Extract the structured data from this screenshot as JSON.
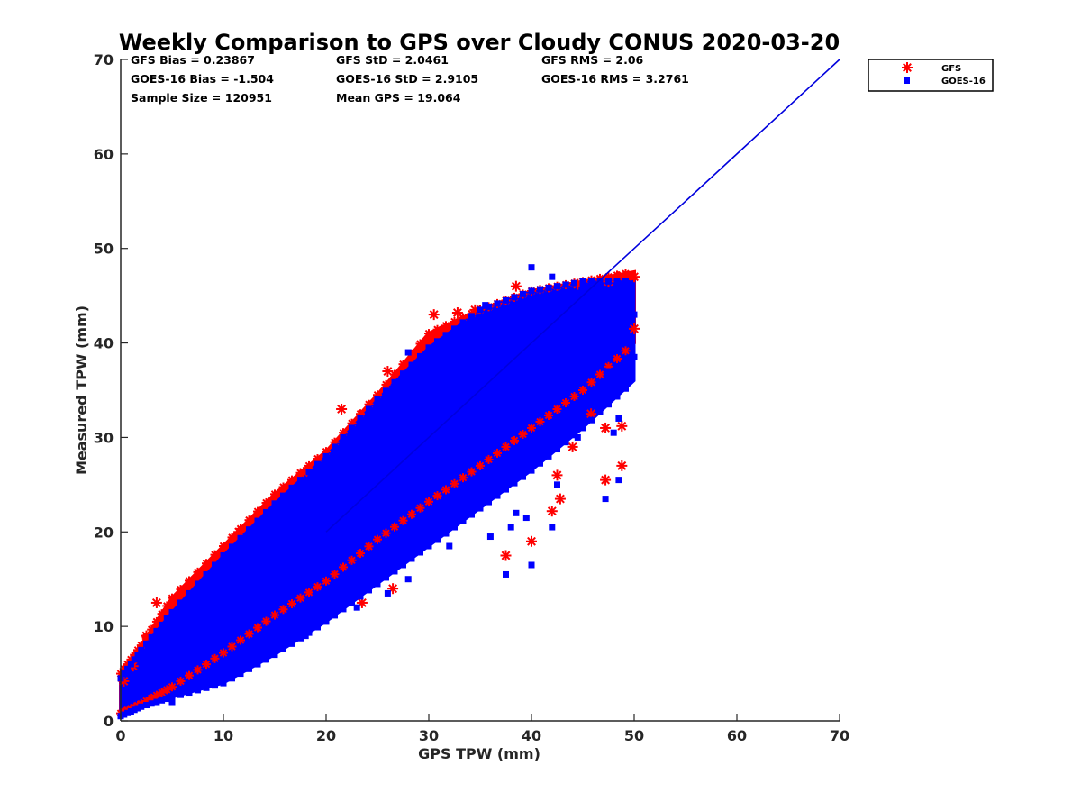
{
  "chart_data": {
    "type": "scatter",
    "title": "Weekly Comparison to GPS over Cloudy CONUS 2020-03-20",
    "xlabel": "GPS TPW (mm)",
    "ylabel": "Measured TPW (mm)",
    "xlim": [
      0,
      70
    ],
    "ylim": [
      0,
      70
    ],
    "xticks": [
      "0",
      "10",
      "20",
      "30",
      "40",
      "50",
      "60",
      "70"
    ],
    "yticks": [
      "0",
      "10",
      "20",
      "30",
      "40",
      "50",
      "60",
      "70"
    ],
    "grid": false,
    "legend_position": "top-right outside",
    "stats": [
      [
        "GFS Bias = 0.23867",
        "GFS StD = 2.0461",
        "GFS RMS = 2.06"
      ],
      [
        "GOES-16 Bias = -1.504",
        "GOES-16 StD = 2.9105",
        "GOES-16 RMS = 3.2761"
      ],
      [
        "Sample Size = 120951",
        "Mean GPS = 19.064",
        ""
      ]
    ],
    "series": [
      {
        "name": "GFS",
        "marker": "asterisk",
        "color": "#ff0000",
        "envelope_x": [
          0,
          2,
          5,
          10,
          15,
          20,
          25,
          30,
          35,
          40,
          45,
          50
        ],
        "envelope_low": [
          0.8,
          1.8,
          3.6,
          7.2,
          11.2,
          14.8,
          19.2,
          23.2,
          27.0,
          31.0,
          35.0,
          40.0
        ],
        "envelope_high": [
          5.0,
          8.0,
          13.0,
          18.5,
          24.0,
          28.5,
          34.5,
          41.0,
          43.5,
          45.5,
          46.5,
          47.5
        ],
        "outliers": [
          [
            0.3,
            4.2
          ],
          [
            1.2,
            5.8
          ],
          [
            3.5,
            12.5
          ],
          [
            2.5,
            9.0
          ],
          [
            11.5,
            20.0
          ],
          [
            17.8,
            26.3
          ],
          [
            21.5,
            33.0
          ],
          [
            26.0,
            37.0
          ],
          [
            30.5,
            43.0
          ],
          [
            32.8,
            43.2
          ],
          [
            34.5,
            43.5
          ],
          [
            38.5,
            46.0
          ],
          [
            44.5,
            46.2
          ],
          [
            47.5,
            46.5
          ],
          [
            48.5,
            47.0
          ],
          [
            50.0,
            47.0
          ],
          [
            50.0,
            41.5
          ],
          [
            48.8,
            31.2
          ],
          [
            47.2,
            31.0
          ],
          [
            47.2,
            25.5
          ],
          [
            48.8,
            27.0
          ],
          [
            45.8,
            32.5
          ],
          [
            44.0,
            29.0
          ],
          [
            42.5,
            26.0
          ],
          [
            42.8,
            23.5
          ],
          [
            42.0,
            22.2
          ],
          [
            40.0,
            19.0
          ],
          [
            37.5,
            17.5
          ],
          [
            26.5,
            14.0
          ],
          [
            23.5,
            12.5
          ]
        ]
      },
      {
        "name": "GOES-16",
        "marker": "square",
        "color": "#0000ff",
        "envelope_x": [
          0,
          2,
          5,
          10,
          15,
          20,
          25,
          30,
          35,
          40,
          45,
          50
        ],
        "envelope_low": [
          0.5,
          1.5,
          2.5,
          4.0,
          7.0,
          10.5,
          14.5,
          18.5,
          22.5,
          26.5,
          31.0,
          36.0
        ],
        "envelope_high": [
          4.5,
          7.5,
          11.5,
          17.5,
          23.0,
          28.0,
          34.0,
          39.5,
          43.5,
          45.5,
          46.5,
          46.5
        ],
        "outliers": [
          [
            28.0,
            39.0
          ],
          [
            35.5,
            44.0
          ],
          [
            40.0,
            48.0
          ],
          [
            42.0,
            47.0
          ],
          [
            45.0,
            46.0
          ],
          [
            49.0,
            44.0
          ],
          [
            50.0,
            43.0
          ],
          [
            50.0,
            38.5
          ],
          [
            47.5,
            37.0
          ],
          [
            48.5,
            32.0
          ],
          [
            48.0,
            30.5
          ],
          [
            48.5,
            25.5
          ],
          [
            47.2,
            23.5
          ],
          [
            44.5,
            30.0
          ],
          [
            42.5,
            25.0
          ],
          [
            42.0,
            20.5
          ],
          [
            39.5,
            21.5
          ],
          [
            38.5,
            22.0
          ],
          [
            38.0,
            20.5
          ],
          [
            37.5,
            15.5
          ],
          [
            40.0,
            16.5
          ],
          [
            36.0,
            19.5
          ],
          [
            32.0,
            18.5
          ],
          [
            28.0,
            15.0
          ],
          [
            26.0,
            13.5
          ],
          [
            23.0,
            12.0
          ],
          [
            18.0,
            9.0
          ],
          [
            14.0,
            6.5
          ],
          [
            10.0,
            4.0
          ],
          [
            5.0,
            2.0
          ]
        ]
      },
      {
        "name": "",
        "type": "line",
        "color": "#0000dd",
        "x": [
          20.0,
          30.0,
          40.0,
          45.0,
          50.0,
          55.0,
          60.0,
          65.0,
          70.0
        ],
        "y": [
          20.0,
          30.0,
          40.0,
          45.0,
          50.0,
          55.0,
          60.0,
          65.0,
          70.0
        ]
      }
    ]
  }
}
